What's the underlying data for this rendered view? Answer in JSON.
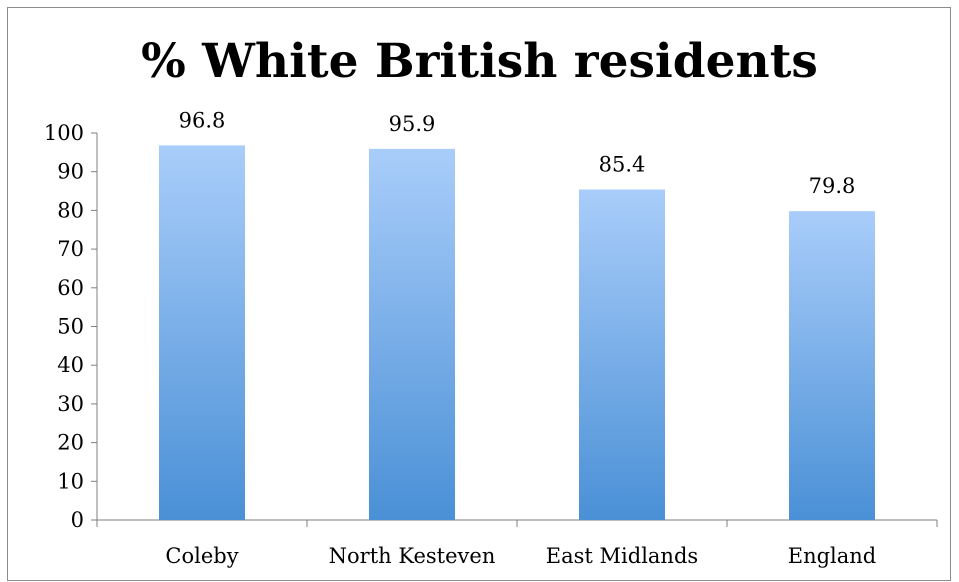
{
  "chart_data": {
    "type": "bar",
    "title": "% White British residents",
    "categories": [
      "Coleby",
      "North Kesteven",
      "East Midlands",
      "England"
    ],
    "values": [
      96.8,
      95.9,
      85.4,
      79.8
    ],
    "data_labels": [
      "96.8",
      "95.9",
      "85.4",
      "79.8"
    ],
    "xlabel": "",
    "ylabel": "",
    "ylim": [
      0,
      100
    ],
    "yticks": [
      0,
      10,
      20,
      30,
      40,
      50,
      60,
      70,
      80,
      90,
      100
    ],
    "grid": false,
    "legend": "none",
    "colors": {
      "bar_top": "#a9cdfa",
      "bar_bottom": "#4a90d6",
      "axis": "#7f7f7f"
    }
  }
}
